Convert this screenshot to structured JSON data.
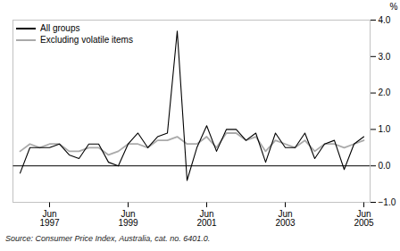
{
  "chart_data": {
    "type": "line",
    "ylabel": "%",
    "caption": "Source: Consumer Price Index, Australia, cat. no. 6401.0.",
    "categories": [
      null,
      null,
      null,
      "Jun\n1997",
      null,
      null,
      null,
      null,
      null,
      null,
      null,
      "Jun\n1999",
      null,
      null,
      null,
      null,
      null,
      null,
      null,
      "Jun\n2001",
      null,
      null,
      null,
      null,
      null,
      null,
      null,
      "Jun\n2003",
      null,
      null,
      null,
      null,
      null,
      null,
      null,
      "Jun\n2005"
    ],
    "series": [
      {
        "name": "All groups",
        "color": "#000000",
        "values": [
          -0.2,
          0.5,
          0.5,
          0.5,
          0.6,
          0.3,
          0.2,
          0.6,
          0.6,
          0.1,
          0.0,
          0.6,
          0.9,
          0.5,
          0.8,
          0.9,
          3.7,
          -0.4,
          0.5,
          1.1,
          0.4,
          1.0,
          1.0,
          0.7,
          0.9,
          0.1,
          0.9,
          0.5,
          0.5,
          0.9,
          0.2,
          0.6,
          0.7,
          -0.1,
          0.6,
          0.8
        ]
      },
      {
        "name": "Excluding volatile items",
        "color": "#aaaaaa",
        "values": [
          0.4,
          0.6,
          0.5,
          0.6,
          0.6,
          0.4,
          0.4,
          0.5,
          0.5,
          0.3,
          0.4,
          0.6,
          0.6,
          0.5,
          0.7,
          0.7,
          0.8,
          0.6,
          0.6,
          0.8,
          0.5,
          0.9,
          0.9,
          0.7,
          0.8,
          0.4,
          0.7,
          0.6,
          0.5,
          0.7,
          0.4,
          0.6,
          0.6,
          0.5,
          0.6,
          0.7
        ]
      }
    ],
    "ylim": [
      -1,
      4
    ],
    "yticks": [
      -1,
      0,
      1,
      2,
      3,
      4
    ],
    "legend": "upper left"
  }
}
